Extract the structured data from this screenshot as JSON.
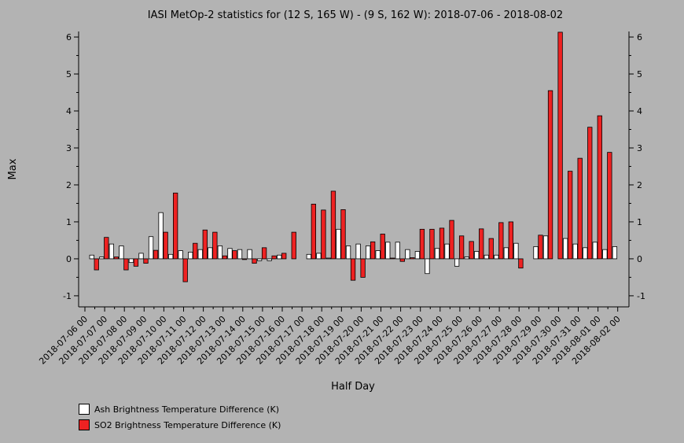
{
  "chart_data": {
    "type": "bar",
    "title": "IASI MetOp-2 statistics for (12 S, 165 W) - (9 S, 162 W): 2018-07-06 - 2018-08-02",
    "xlabel": "Half Day",
    "ylabel": "Max",
    "ylim": [
      -1.3,
      6.15
    ],
    "yticks": [
      -1,
      0,
      1,
      2,
      3,
      4,
      5,
      6
    ],
    "xtick_labels": [
      "2018-07-06 00",
      "2018-07-07 00",
      "2018-07-08 00",
      "2018-07-09 00",
      "2018-07-10 00",
      "2018-07-11 00",
      "2018-07-12 00",
      "2018-07-13 00",
      "2018-07-14 00",
      "2018-07-15 00",
      "2018-07-16 00",
      "2018-07-17 00",
      "2018-07-18 00",
      "2018-07-19 00",
      "2018-07-20 00",
      "2018-07-21 00",
      "2018-07-22 00",
      "2018-07-23 00",
      "2018-07-24 00",
      "2018-07-25 00",
      "2018-07-26 00",
      "2018-07-27 00",
      "2018-07-28 00",
      "2018-07-29 00",
      "2018-07-30 00",
      "2018-07-31 00",
      "2018-08-01 00",
      "2018-08-02 00"
    ],
    "legend_position": "bottom-left",
    "series": [
      {
        "name": "Ash Brightness Temperature Difference (K)",
        "color": "#ffffff",
        "values": [
          0.1,
          0.05,
          0.4,
          0.35,
          -0.1,
          0.15,
          0.6,
          1.25,
          0.12,
          0.22,
          0.18,
          0.25,
          0.3,
          0.35,
          0.28,
          0.25,
          0.25,
          -0.05,
          -0.05,
          0.1,
          null,
          null,
          0.12,
          0.15,
          0.02,
          0.8,
          0.35,
          0.4,
          0.35,
          0.22,
          0.45,
          0.45,
          0.25,
          0.2,
          -0.4,
          0.28,
          0.4,
          -0.2,
          0.05,
          0.2,
          0.1,
          0.1,
          0.3,
          0.42,
          null,
          0.33,
          0.62,
          null,
          0.55,
          0.4,
          0.3,
          0.45,
          0.25,
          0.33
        ]
      },
      {
        "name": "SO2 Brightness Temperature Difference (K)",
        "color": "#ee2222",
        "values": [
          -0.3,
          0.58,
          0.05,
          -0.3,
          -0.2,
          -0.12,
          0.23,
          0.72,
          1.78,
          -0.62,
          0.42,
          0.78,
          0.72,
          0.08,
          0.22,
          -0.02,
          -0.12,
          0.3,
          0.08,
          0.15,
          0.72,
          null,
          1.48,
          1.32,
          1.83,
          1.33,
          -0.58,
          -0.5,
          0.46,
          0.67,
          0.02,
          -0.07,
          0.03,
          0.8,
          0.8,
          0.83,
          1.04,
          0.62,
          0.47,
          0.81,
          0.55,
          0.98,
          1.0,
          -0.25,
          null,
          0.64,
          4.55,
          6.13,
          2.37,
          2.72,
          3.56,
          3.87,
          2.88,
          null
        ]
      }
    ]
  },
  "legend": {
    "ash_label": "Ash Brightness Temperature Difference (K)",
    "so2_label": "SO2 Brightness Temperature Difference (K)"
  }
}
